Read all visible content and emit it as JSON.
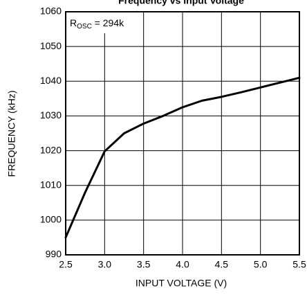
{
  "chart_data": {
    "type": "line",
    "title": "Frequency vs Input Voltage",
    "x_label": "INPUT VOLTAGE (V)",
    "y_label": "FREQUENCY (kHz)",
    "annotation": {
      "main": "R",
      "sub": "OSC",
      "rest": " = 294k"
    },
    "x": [
      2.5,
      2.75,
      3.0,
      3.25,
      3.5,
      3.75,
      4.0,
      4.25,
      4.5,
      4.75,
      5.0,
      5.25,
      5.5
    ],
    "series": [
      {
        "color": "#000000",
        "values": [
          995,
          1008,
          1019.8,
          1025,
          1027.8,
          1030,
          1032.5,
          1034.4,
          1035.5,
          1036.8,
          1038.2,
          1039.6,
          1041
        ]
      }
    ],
    "xlim": [
      2.5,
      5.5
    ],
    "xticks": [
      2.5,
      {
        "value": 3,
        "label": "3.0"
      },
      3.5,
      {
        "value": 4,
        "label": "4.0"
      },
      4.5,
      {
        "value": 5,
        "label": "5.0"
      },
      5.5
    ],
    "ylim": [
      990,
      1060
    ],
    "yticks": [
      990,
      1000,
      1010,
      1020,
      1030,
      1040,
      1050,
      1060
    ],
    "grid": true
  }
}
